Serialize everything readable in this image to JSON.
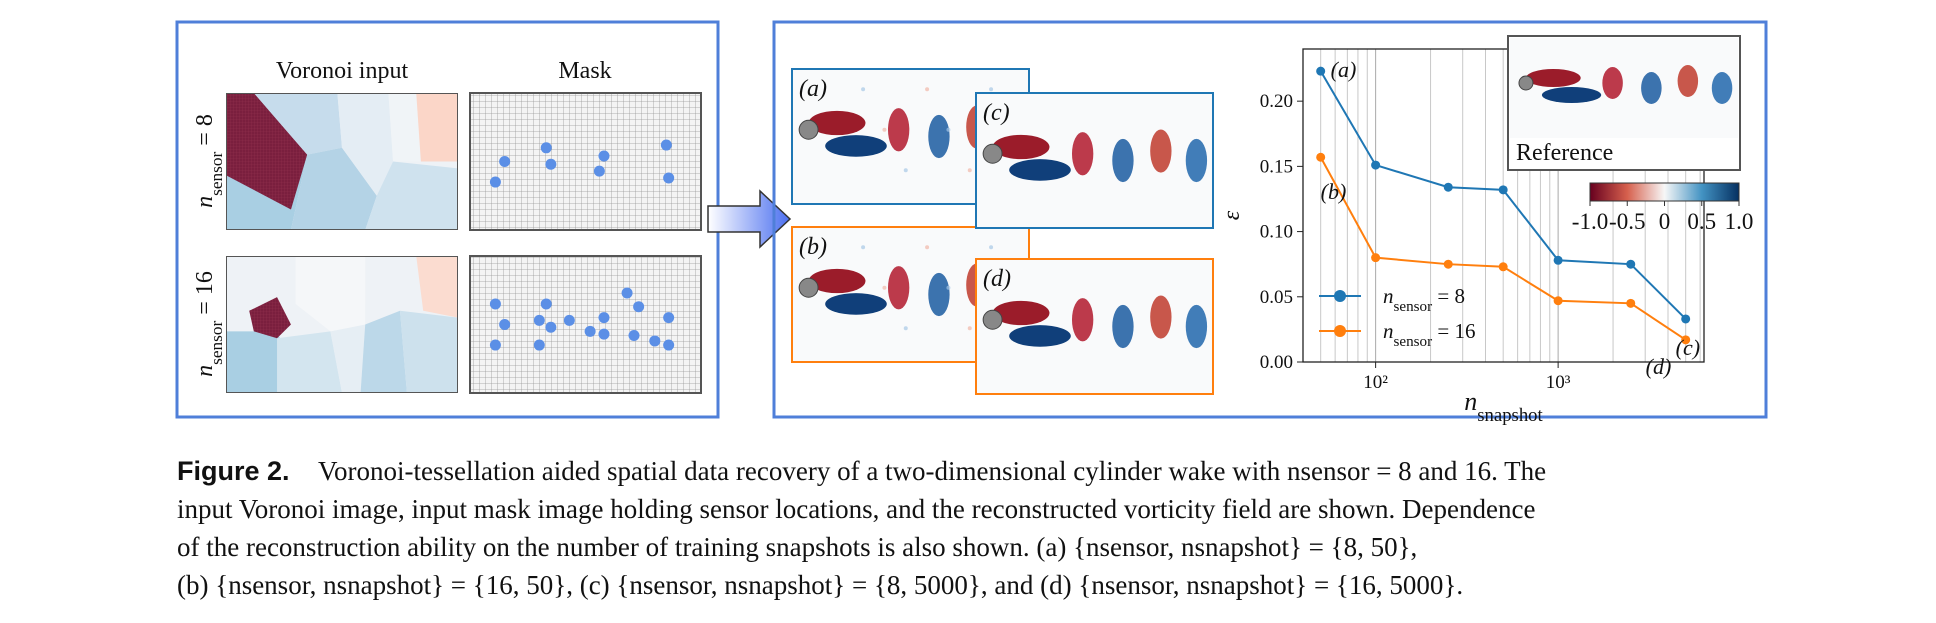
{
  "left_panel": {
    "headers": [
      "Voronoi input",
      "Mask"
    ],
    "rows": [
      "nsensor = 8",
      "nsensor = 16"
    ]
  },
  "right_panel": {
    "panels": [
      "(a)",
      "(b)",
      "(c)",
      "(d)"
    ],
    "reference": "Reference",
    "colorbar_ticks": [
      "-1.0",
      "-0.5",
      "0",
      "0.5",
      "1.0"
    ]
  },
  "chart_data": {
    "type": "line",
    "x_label": "nsnapshot",
    "y_label": "ε",
    "x": [
      50,
      100,
      250,
      500,
      1000,
      2500,
      5000
    ],
    "xscale": "log",
    "xlim": [
      40,
      6300
    ],
    "xticks": [
      {
        "value": 100,
        "label": "10²"
      },
      {
        "value": 1000,
        "label": "10³"
      }
    ],
    "ylim": [
      0,
      0.24
    ],
    "yticks": [
      {
        "value": 0,
        "label": "0.00"
      },
      {
        "value": 0.05,
        "label": "0.05"
      },
      {
        "value": 0.1,
        "label": "0.10"
      },
      {
        "value": 0.15,
        "label": "0.15"
      },
      {
        "value": 0.2,
        "label": "0.20"
      }
    ],
    "grid": "x",
    "legend": "lower left",
    "series": [
      {
        "name": "nsensor = 8",
        "color": "#1f77b4",
        "values": [
          0.223,
          0.151,
          0.134,
          0.132,
          0.078,
          0.075,
          0.033
        ]
      },
      {
        "name": "nsensor = 16",
        "color": "#ff7f0e",
        "values": [
          0.157,
          0.08,
          0.075,
          0.073,
          0.047,
          0.045,
          0.017
        ]
      }
    ],
    "annotations": [
      "(a)",
      "(b)",
      "(c)",
      "(d)"
    ]
  },
  "caption": {
    "label": "Figure 2.",
    "lines": [
      "Voronoi-tessellation aided spatial data recovery of a two-dimensional cylinder wake with nsensor = 8 and 16. The",
      "input Voronoi image, input mask image holding sensor locations, and the reconstructed vorticity field are shown. Dependence",
      "of the reconstruction ability on the number of training snapshots is also shown. (a) {nsensor, nsnapshot} = {8, 50},",
      "(b) {nsensor, nsnapshot} = {16, 50}, (c) {nsensor, nsnapshot} = {8, 5000}, and (d) {nsensor, nsnapshot} = {16, 5000}."
    ]
  }
}
